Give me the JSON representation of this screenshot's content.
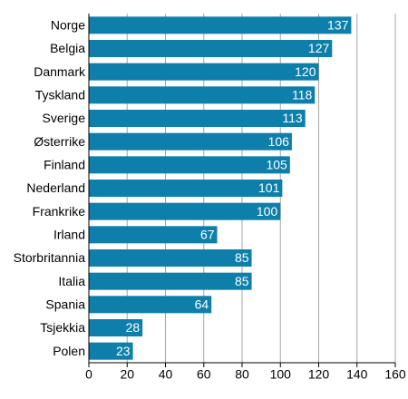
{
  "chart_data": {
    "type": "barh",
    "categories": [
      "Norge",
      "Belgia",
      "Danmark",
      "Tyskland",
      "Sverige",
      "Østerrike",
      "Finland",
      "Nederland",
      "Frankrike",
      "Irland",
      "Storbritannia",
      "Italia",
      "Spania",
      "Tsjekkia",
      "Polen"
    ],
    "values": [
      137,
      127,
      120,
      118,
      113,
      106,
      105,
      101,
      100,
      67,
      85,
      85,
      64,
      28,
      23
    ],
    "color": "#0e7fab",
    "xlim": [
      0,
      160
    ],
    "xticks": [
      0,
      20,
      40,
      60,
      80,
      100,
      120,
      140,
      160
    ],
    "grid": true
  }
}
